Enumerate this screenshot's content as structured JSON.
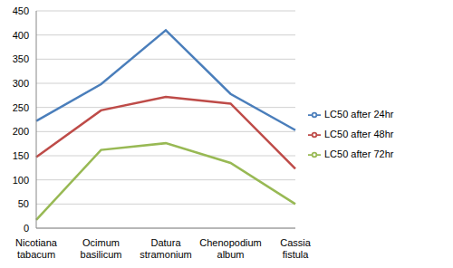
{
  "chart_data": {
    "type": "line",
    "categories": [
      "Nicotiana tabacum",
      "Ocimum basilicum",
      "Datura stramonium",
      "Chenopodium album",
      "Cassia fistula"
    ],
    "series": [
      {
        "name": "LC50 after 24hr",
        "color": "#4a7ebb",
        "values": [
          222,
          298,
          410,
          278,
          203
        ]
      },
      {
        "name": "LC50 after 48hr",
        "color": "#be4b48",
        "values": [
          147,
          244,
          272,
          258,
          123
        ]
      },
      {
        "name": "LC50 after 72hr",
        "color": "#98b954",
        "values": [
          17,
          162,
          176,
          135,
          50
        ]
      }
    ],
    "ylim": [
      0,
      450
    ],
    "yticks": [
      0,
      50,
      100,
      150,
      200,
      250,
      300,
      350,
      400,
      450
    ],
    "grid": true,
    "legend": "right"
  }
}
